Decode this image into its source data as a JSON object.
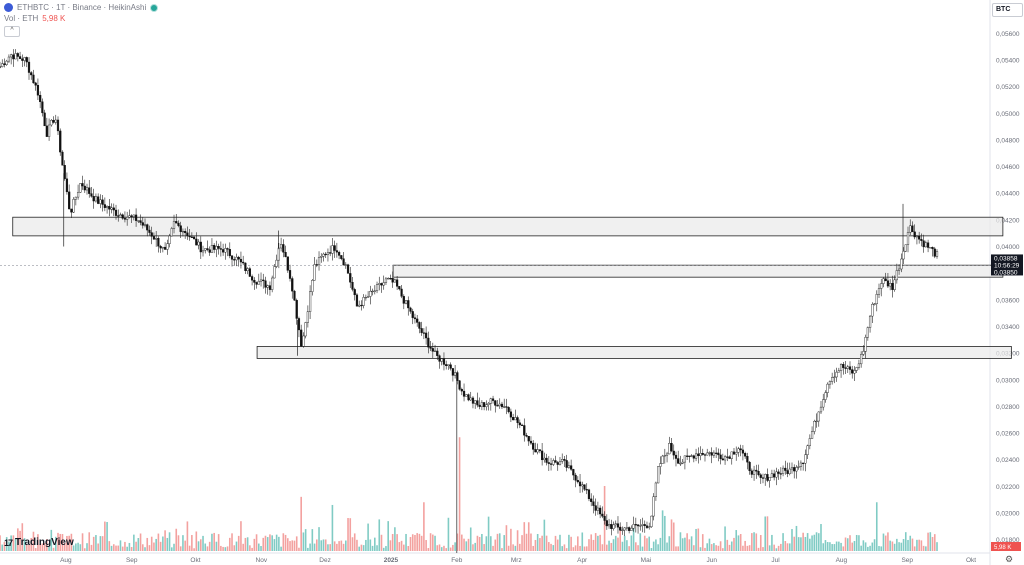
{
  "header": {
    "symbol_line": "ETHBTC · 1T · Binance · HeikinAshi",
    "vol_label": "Vol · ETH",
    "vol_value": "5,98 K"
  },
  "currency_button": "BTC",
  "logo": {
    "text": "TradingView",
    "mark": "17"
  },
  "chart_data": {
    "type": "candlestick",
    "style": "heikin-ashi",
    "ylim": [
      0.017,
      0.057
    ],
    "y_ticks": [
      0.018,
      0.02,
      0.022,
      0.024,
      0.026,
      0.028,
      0.03,
      0.032,
      0.034,
      0.036,
      0.038,
      0.04,
      0.042,
      0.044,
      0.046,
      0.048,
      0.05,
      0.052,
      0.054,
      0.056
    ],
    "y_tick_labels": [
      "0,01800",
      "0,02000",
      "0,02200",
      "0,02400",
      "0,02600",
      "0,02800",
      "0,03000",
      "0,03200",
      "0,03400",
      "0,03600",
      "0,03800",
      "0,04000",
      "0,04200",
      "0,04400",
      "0,04600",
      "0,04800",
      "0,05000",
      "0,05200",
      "0,05400",
      "0,05600"
    ],
    "x_ticks": [
      {
        "label": "Aug",
        "day": 31
      },
      {
        "label": "Sep",
        "day": 62
      },
      {
        "label": "Okt",
        "day": 92
      },
      {
        "label": "Nov",
        "day": 123
      },
      {
        "label": "Dez",
        "day": 153
      },
      {
        "label": "2025",
        "day": 184,
        "bold": true
      },
      {
        "label": "Feb",
        "day": 215
      },
      {
        "label": "Mrz",
        "day": 243
      },
      {
        "label": "Apr",
        "day": 274
      },
      {
        "label": "Mai",
        "day": 304
      },
      {
        "label": "Jun",
        "day": 335
      },
      {
        "label": "Jul",
        "day": 365
      },
      {
        "label": "Aug",
        "day": 396
      },
      {
        "label": "Sep",
        "day": 427
      },
      {
        "label": "Okt",
        "day": 457
      }
    ],
    "x_range_days": [
      0,
      465
    ],
    "price_path": [
      [
        0,
        0.0535
      ],
      [
        5,
        0.0544
      ],
      [
        12,
        0.054
      ],
      [
        18,
        0.0515
      ],
      [
        22,
        0.0485
      ],
      [
        26,
        0.0498
      ],
      [
        30,
        0.0455
      ],
      [
        33,
        0.0425
      ],
      [
        38,
        0.0448
      ],
      [
        45,
        0.0435
      ],
      [
        55,
        0.0425
      ],
      [
        65,
        0.042
      ],
      [
        72,
        0.0408
      ],
      [
        78,
        0.0395
      ],
      [
        82,
        0.0418
      ],
      [
        88,
        0.041
      ],
      [
        95,
        0.0398
      ],
      [
        105,
        0.0398
      ],
      [
        112,
        0.039
      ],
      [
        120,
        0.0375
      ],
      [
        127,
        0.037
      ],
      [
        132,
        0.0405
      ],
      [
        137,
        0.0375
      ],
      [
        142,
        0.0325
      ],
      [
        148,
        0.0385
      ],
      [
        153,
        0.0395
      ],
      [
        158,
        0.04
      ],
      [
        163,
        0.0385
      ],
      [
        168,
        0.0355
      ],
      [
        175,
        0.0365
      ],
      [
        182,
        0.0375
      ],
      [
        186,
        0.0372
      ],
      [
        195,
        0.0345
      ],
      [
        205,
        0.0318
      ],
      [
        212,
        0.031
      ],
      [
        218,
        0.029
      ],
      [
        225,
        0.028
      ],
      [
        232,
        0.0284
      ],
      [
        238,
        0.028
      ],
      [
        245,
        0.0265
      ],
      [
        252,
        0.0248
      ],
      [
        258,
        0.0238
      ],
      [
        265,
        0.0238
      ],
      [
        272,
        0.0225
      ],
      [
        278,
        0.021
      ],
      [
        285,
        0.0192
      ],
      [
        292,
        0.0188
      ],
      [
        300,
        0.019
      ],
      [
        306,
        0.0192
      ],
      [
        310,
        0.0235
      ],
      [
        315,
        0.025
      ],
      [
        320,
        0.0238
      ],
      [
        328,
        0.0245
      ],
      [
        335,
        0.0245
      ],
      [
        342,
        0.0242
      ],
      [
        348,
        0.025
      ],
      [
        352,
        0.0235
      ],
      [
        358,
        0.0225
      ],
      [
        365,
        0.023
      ],
      [
        372,
        0.0232
      ],
      [
        378,
        0.024
      ],
      [
        385,
        0.0275
      ],
      [
        390,
        0.03
      ],
      [
        396,
        0.031
      ],
      [
        402,
        0.0305
      ],
      [
        406,
        0.032
      ],
      [
        410,
        0.0352
      ],
      [
        415,
        0.0375
      ],
      [
        420,
        0.037
      ],
      [
        424,
        0.039
      ],
      [
        428,
        0.0415
      ],
      [
        433,
        0.0405
      ],
      [
        438,
        0.0398
      ],
      [
        442,
        0.0392
      ]
    ],
    "spike_wicks": [
      {
        "day": 30,
        "low": 0.04
      },
      {
        "day": 215,
        "low": 0.017
      },
      {
        "day": 425,
        "high": 0.0432
      },
      {
        "day": 140,
        "low": 0.0318
      },
      {
        "day": 131,
        "high": 0.0412
      }
    ],
    "zones": [
      {
        "day_start": 6,
        "day_end": 472,
        "y_low": 0.0408,
        "y_high": 0.0422
      },
      {
        "day_start": 185,
        "day_end": 472,
        "y_low": 0.0377,
        "y_high": 0.0386
      },
      {
        "day_start": 121,
        "day_end": 476,
        "y_low": 0.0316,
        "y_high": 0.0325
      }
    ],
    "current_price": 0.03858,
    "current_price_label": "0,03858",
    "countdown_label": "10:56:29",
    "prev_price_label": "0,03850",
    "volume": {
      "max_value": 48,
      "spikes": [
        {
          "day": 31,
          "value": 48
        },
        {
          "day": 216,
          "value": 42
        },
        {
          "day": 200,
          "value": 18
        },
        {
          "day": 156,
          "value": 17
        },
        {
          "day": 142,
          "value": 20
        },
        {
          "day": 285,
          "value": 24
        },
        {
          "day": 312,
          "value": 15
        },
        {
          "day": 413,
          "value": 18
        }
      ],
      "last_value_label": "5,98 K"
    },
    "colors": {
      "up": "#26a69a",
      "down": "#ef5350",
      "vol_up": "#80cbc4",
      "vol_down": "#f3a19f",
      "zone_fill": "#eaeaea",
      "zone_stroke": "#222222"
    }
  }
}
